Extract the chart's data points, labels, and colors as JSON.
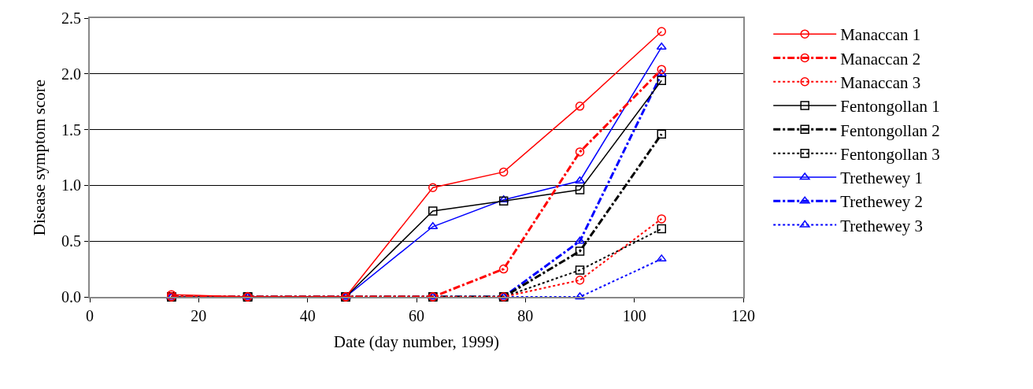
{
  "chart_data": {
    "type": "line",
    "xlabel": "Date (day number, 1999)",
    "ylabel": "Disease symptom score",
    "x": [
      15,
      29,
      47,
      63,
      76,
      90,
      105
    ],
    "xlim": [
      0,
      120
    ],
    "xticks": [
      0,
      20,
      40,
      60,
      80,
      100,
      120
    ],
    "ylim": [
      0,
      2.5
    ],
    "yticks": [
      {
        "value": 0,
        "label": "0.0"
      },
      {
        "value": 0.5,
        "label": "0.5"
      },
      {
        "value": 1,
        "label": "1.0"
      },
      {
        "value": 1.5,
        "label": "1.5"
      },
      {
        "value": 2,
        "label": "2.0"
      },
      {
        "value": 2.5,
        "label": "2.5"
      }
    ],
    "grid": "y",
    "legend": "right",
    "series": [
      {
        "name": "Manaccan 1",
        "color": "#ff0000",
        "marker": "circle",
        "line_style": "solid",
        "values": [
          0.02,
          0,
          0,
          0.98,
          1.12,
          1.71,
          2.38
        ]
      },
      {
        "name": "Manaccan 2",
        "color": "#ff0000",
        "marker": "circle",
        "line_style": "dashed",
        "values": [
          0,
          0,
          0,
          0,
          0.25,
          1.3,
          2.04
        ]
      },
      {
        "name": "Manaccan 3",
        "color": "#ff0000",
        "marker": "circle",
        "line_style": "dotted",
        "values": [
          0,
          0,
          0,
          0,
          0,
          0.15,
          0.7
        ]
      },
      {
        "name": "Fentongollan 1",
        "color": "#000000",
        "marker": "square",
        "line_style": "solid",
        "values": [
          0,
          0,
          0,
          0.77,
          0.86,
          0.96,
          1.94
        ]
      },
      {
        "name": "Fentongollan 2",
        "color": "#000000",
        "marker": "square",
        "line_style": "dashed",
        "values": [
          0,
          0,
          0,
          0,
          0,
          0.41,
          1.46
        ]
      },
      {
        "name": "Fentongollan 3",
        "color": "#000000",
        "marker": "square",
        "line_style": "dotted",
        "values": [
          0,
          0,
          0,
          0,
          0,
          0.24,
          0.61
        ]
      },
      {
        "name": "Trethewey 1",
        "color": "#0000ff",
        "marker": "triangle",
        "line_style": "solid",
        "values": [
          0,
          0,
          0,
          0.63,
          0.87,
          1.04,
          2.24
        ]
      },
      {
        "name": "Trethewey 2",
        "color": "#0000ff",
        "marker": "triangle",
        "line_style": "dashed",
        "values": [
          0,
          0,
          0,
          0,
          0,
          0.5,
          2.0
        ]
      },
      {
        "name": "Trethewey 3",
        "color": "#0000ff",
        "marker": "triangle",
        "line_style": "dotted",
        "values": [
          0,
          0,
          0,
          0,
          0,
          0,
          0.34
        ]
      }
    ]
  }
}
